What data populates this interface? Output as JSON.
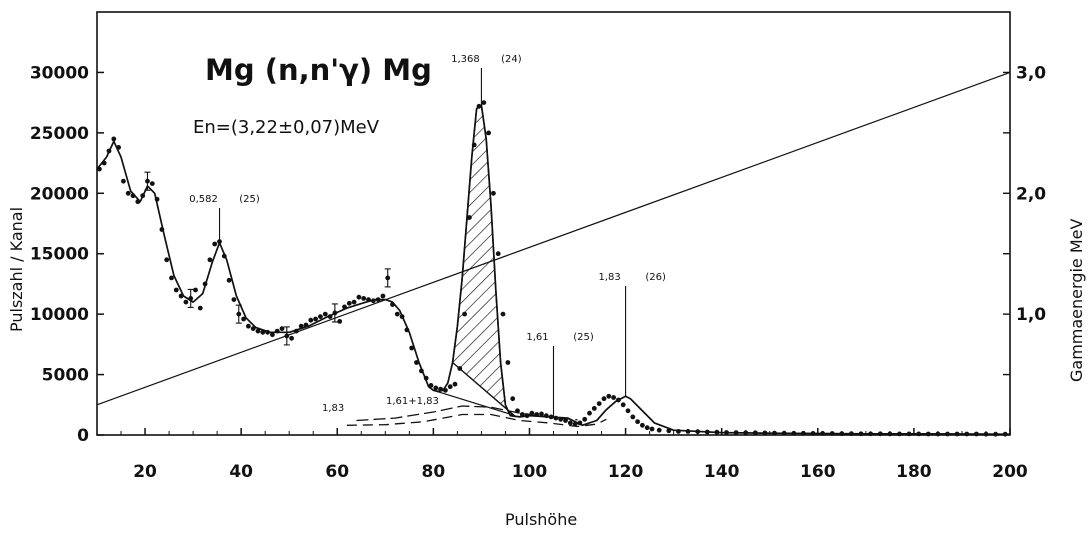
{
  "chart_data": {
    "type": "scatter",
    "title": "Mg (n,n'γ) Mg",
    "subtitle": "En=(3,22±0,07)MeV",
    "xlabel": "Pulshöhe",
    "ylabel": "Pulszahl / Kanal",
    "y2label": "Gammaenergie MeV",
    "xlim": [
      10,
      200
    ],
    "ylim": [
      0,
      35000
    ],
    "y2lim": [
      0,
      3.5
    ],
    "x_ticks": [
      "20",
      "40",
      "60",
      "80",
      "100",
      "120",
      "140",
      "160",
      "180",
      "200"
    ],
    "y_ticks": [
      "0",
      "5000",
      "10000",
      "15000",
      "20000",
      "25000",
      "30000"
    ],
    "y2_ticks": [
      "1,0",
      "2,0",
      "3,0"
    ],
    "grid": false,
    "series": [
      {
        "kind": "points",
        "x": [
          10.5,
          11.5,
          12.5,
          13.5,
          14.5,
          15.5,
          16.5,
          17.5,
          18.5,
          19.5,
          20.5,
          21.5,
          22.5,
          23.5,
          24.5,
          25.5,
          26.5,
          27.5,
          28.5,
          29.5,
          30.5,
          31.5,
          32.5,
          33.5,
          34.5,
          35.5,
          36.5,
          37.5,
          38.5,
          39.5,
          40.5,
          41.5,
          42.5,
          43.5,
          44.5,
          45.5,
          46.5,
          47.5,
          48.5,
          49.5,
          50.5,
          51.5,
          52.5,
          53.5,
          54.5,
          55.5,
          56.5,
          57.5,
          58.5,
          59.5,
          60.5,
          61.5,
          62.5,
          63.5,
          64.5,
          65.5,
          66.5,
          67.5,
          68.5,
          69.5,
          70.5,
          71.5,
          72.5,
          73.5,
          74.5,
          75.5,
          76.5,
          77.5,
          78.5,
          79.5,
          80.5,
          81.5,
          82.5,
          83.5,
          84.5,
          85.5,
          86.5,
          87.5,
          88.5,
          89.5,
          90.5,
          91.5,
          92.5,
          93.5,
          94.5,
          95.5,
          96.5,
          97.5,
          98.5,
          99.5,
          100.5,
          101.5,
          102.5,
          103.5,
          104.5,
          105.5,
          106.5,
          107.5,
          108.5,
          109.5,
          110.5,
          111.5,
          112.5,
          113.5,
          114.5,
          115.5,
          116.5,
          117.5,
          118.5,
          119.5,
          120.5,
          121.5,
          122.5,
          123.5,
          124.5,
          125.5,
          127,
          129,
          131,
          133,
          135,
          137,
          139,
          141,
          143,
          145,
          147,
          149,
          151,
          153,
          155,
          157,
          159,
          161,
          163,
          165,
          167,
          169,
          171,
          173,
          175,
          177,
          179,
          181,
          183,
          185,
          187,
          189,
          191,
          193,
          195,
          197,
          199
        ],
        "y": [
          22000,
          22500,
          23500,
          24500,
          23800,
          21000,
          20000,
          19800,
          19300,
          19800,
          21000,
          20800,
          19500,
          17000,
          14500,
          13000,
          12000,
          11500,
          11000,
          11300,
          12000,
          10500,
          12500,
          14500,
          15800,
          16000,
          14800,
          12800,
          11200,
          10000,
          9600,
          9000,
          8800,
          8600,
          8500,
          8500,
          8300,
          8600,
          8800,
          8200,
          8000,
          8600,
          9000,
          9100,
          9500,
          9600,
          9800,
          10000,
          9800,
          10100,
          9400,
          10600,
          10900,
          11000,
          11400,
          11300,
          11200,
          11100,
          11200,
          11500,
          13000,
          10800,
          10000,
          9800,
          8700,
          7200,
          6000,
          5300,
          4700,
          4100,
          3900,
          3800,
          3700,
          4000,
          4200,
          5500,
          10000,
          18000,
          24000,
          27200,
          27500,
          25000,
          20000,
          15000,
          10000,
          6000,
          3000,
          2000,
          1700,
          1600,
          1800,
          1700,
          1750,
          1600,
          1500,
          1400,
          1300,
          1200,
          1000,
          900,
          1000,
          1300,
          1800,
          2200,
          2600,
          3000,
          3200,
          3100,
          2900,
          2500,
          2000,
          1500,
          1100,
          800,
          600,
          500,
          400,
          350,
          300,
          300,
          280,
          250,
          230,
          210,
          200,
          190,
          180,
          170,
          160,
          150,
          140,
          140,
          130,
          130,
          120,
          110,
          110,
          100,
          100,
          100,
          90,
          90,
          90,
          90,
          80,
          80,
          80,
          80,
          80,
          80,
          70,
          70,
          70
        ]
      },
      {
        "kind": "fit",
        "x": [
          10,
          12,
          13.5,
          15,
          17,
          19,
          20.5,
          22,
          24,
          26,
          28,
          30,
          32,
          34,
          35.5,
          37,
          39,
          41,
          43,
          46,
          50,
          54,
          58,
          62,
          66,
          68,
          70,
          71.5,
          73,
          75,
          77,
          79,
          80,
          81,
          82,
          83,
          84,
          85,
          86,
          87,
          88,
          89,
          90,
          91,
          92,
          93,
          94,
          95,
          96,
          98,
          100,
          104,
          108,
          111,
          114,
          116,
          118,
          120,
          121,
          123,
          126,
          130,
          140,
          150,
          160,
          170,
          180,
          190,
          200
        ],
        "y": [
          22000,
          23000,
          24300,
          23000,
          20200,
          19300,
          20600,
          20000,
          16500,
          13200,
          11500,
          11000,
          11700,
          14300,
          15900,
          14500,
          11500,
          9700,
          8900,
          8500,
          8500,
          9000,
          9800,
          10500,
          11000,
          11200,
          11200,
          11000,
          10300,
          8500,
          6000,
          4000,
          3700,
          3600,
          3700,
          4300,
          6000,
          9000,
          13000,
          18000,
          23000,
          27000,
          27300,
          24500,
          19000,
          12000,
          6000,
          2500,
          1600,
          1500,
          1600,
          1500,
          1400,
          800,
          1200,
          2100,
          2800,
          3200,
          3000,
          2200,
          1000,
          400,
          200,
          150,
          120,
          100,
          90,
          80,
          70
        ]
      },
      {
        "kind": "calibration",
        "x": [
          10,
          200
        ],
        "y": [
          0.25,
          3.0
        ]
      }
    ],
    "peaks": [
      {
        "label": "0,582",
        "index": "(25)",
        "x": 35.5
      },
      {
        "label": "1,368",
        "index": "(24)",
        "x": 90
      },
      {
        "label": "1,61",
        "index": "(25)",
        "x": 105
      },
      {
        "label": "1,83",
        "index": "(26)",
        "x": 120
      }
    ],
    "shaded_region": {
      "x_from": 84,
      "x_to": 97
    },
    "annotations": [
      "1,83",
      "1,61+1,83"
    ],
    "error_bar_x": [
      21,
      30,
      40,
      50,
      60,
      71
    ]
  }
}
